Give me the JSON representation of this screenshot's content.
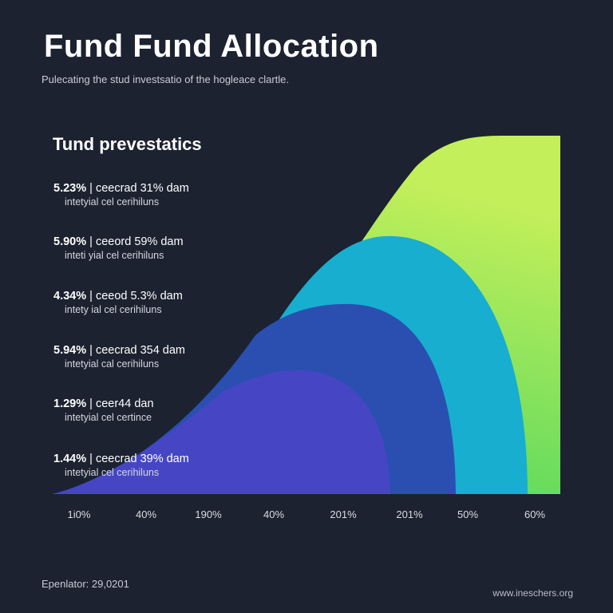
{
  "title": "Fund Fund Allocation",
  "subtitle": "Pulecating the stud investsatio of the hogleace clartle.",
  "panel_heading": "Tund prevestatics",
  "stats": [
    {
      "value": "5.23%",
      "desc": "| ceecrad 31% dam",
      "sub": "intetyial cel cerihiluns"
    },
    {
      "value": "5.90%",
      "desc": "| ceeord 59% dam",
      "sub": "inteti yial cel cerihiluns"
    },
    {
      "value": "4.34%",
      "desc": "| ceeod 5.3% dam",
      "sub": "intety ial cel cerihiluns"
    },
    {
      "value": "5.94%",
      "desc": "| ceecrad 354 dam",
      "sub": "intetyial cal cerihiluns"
    },
    {
      "value": "1.29%",
      "desc": "| ceer44 dan",
      "sub": "intetyial cel certince"
    },
    {
      "value": "1.44%",
      "desc": "| ceecrad 39% dam",
      "sub": "intetyial cel cerihiluns"
    }
  ],
  "colors": {
    "background": "#1c2230",
    "green_start": "#3fd35f",
    "green_end": "#c3ef5a",
    "teal": "#17aed0",
    "blue": "#2a4fb1",
    "violet": "#4646c4"
  },
  "chart_data": {
    "type": "area",
    "title": "Tund prevestatics",
    "x_tick_labels": [
      "1i0%",
      "40%",
      "190%",
      "40%",
      "201%",
      "201%",
      "50%",
      "60%"
    ],
    "layers": [
      {
        "color": "#c3ef5a",
        "relative_height": 1.0
      },
      {
        "color": "#17aed0",
        "relative_height": 0.63
      },
      {
        "color": "#2a4fb1",
        "relative_height": 0.52
      },
      {
        "color": "#4646c4",
        "relative_height": 0.35
      }
    ]
  },
  "footer": {
    "left": "Epenlator: 29,0201",
    "right": "www.ineschers.org"
  }
}
